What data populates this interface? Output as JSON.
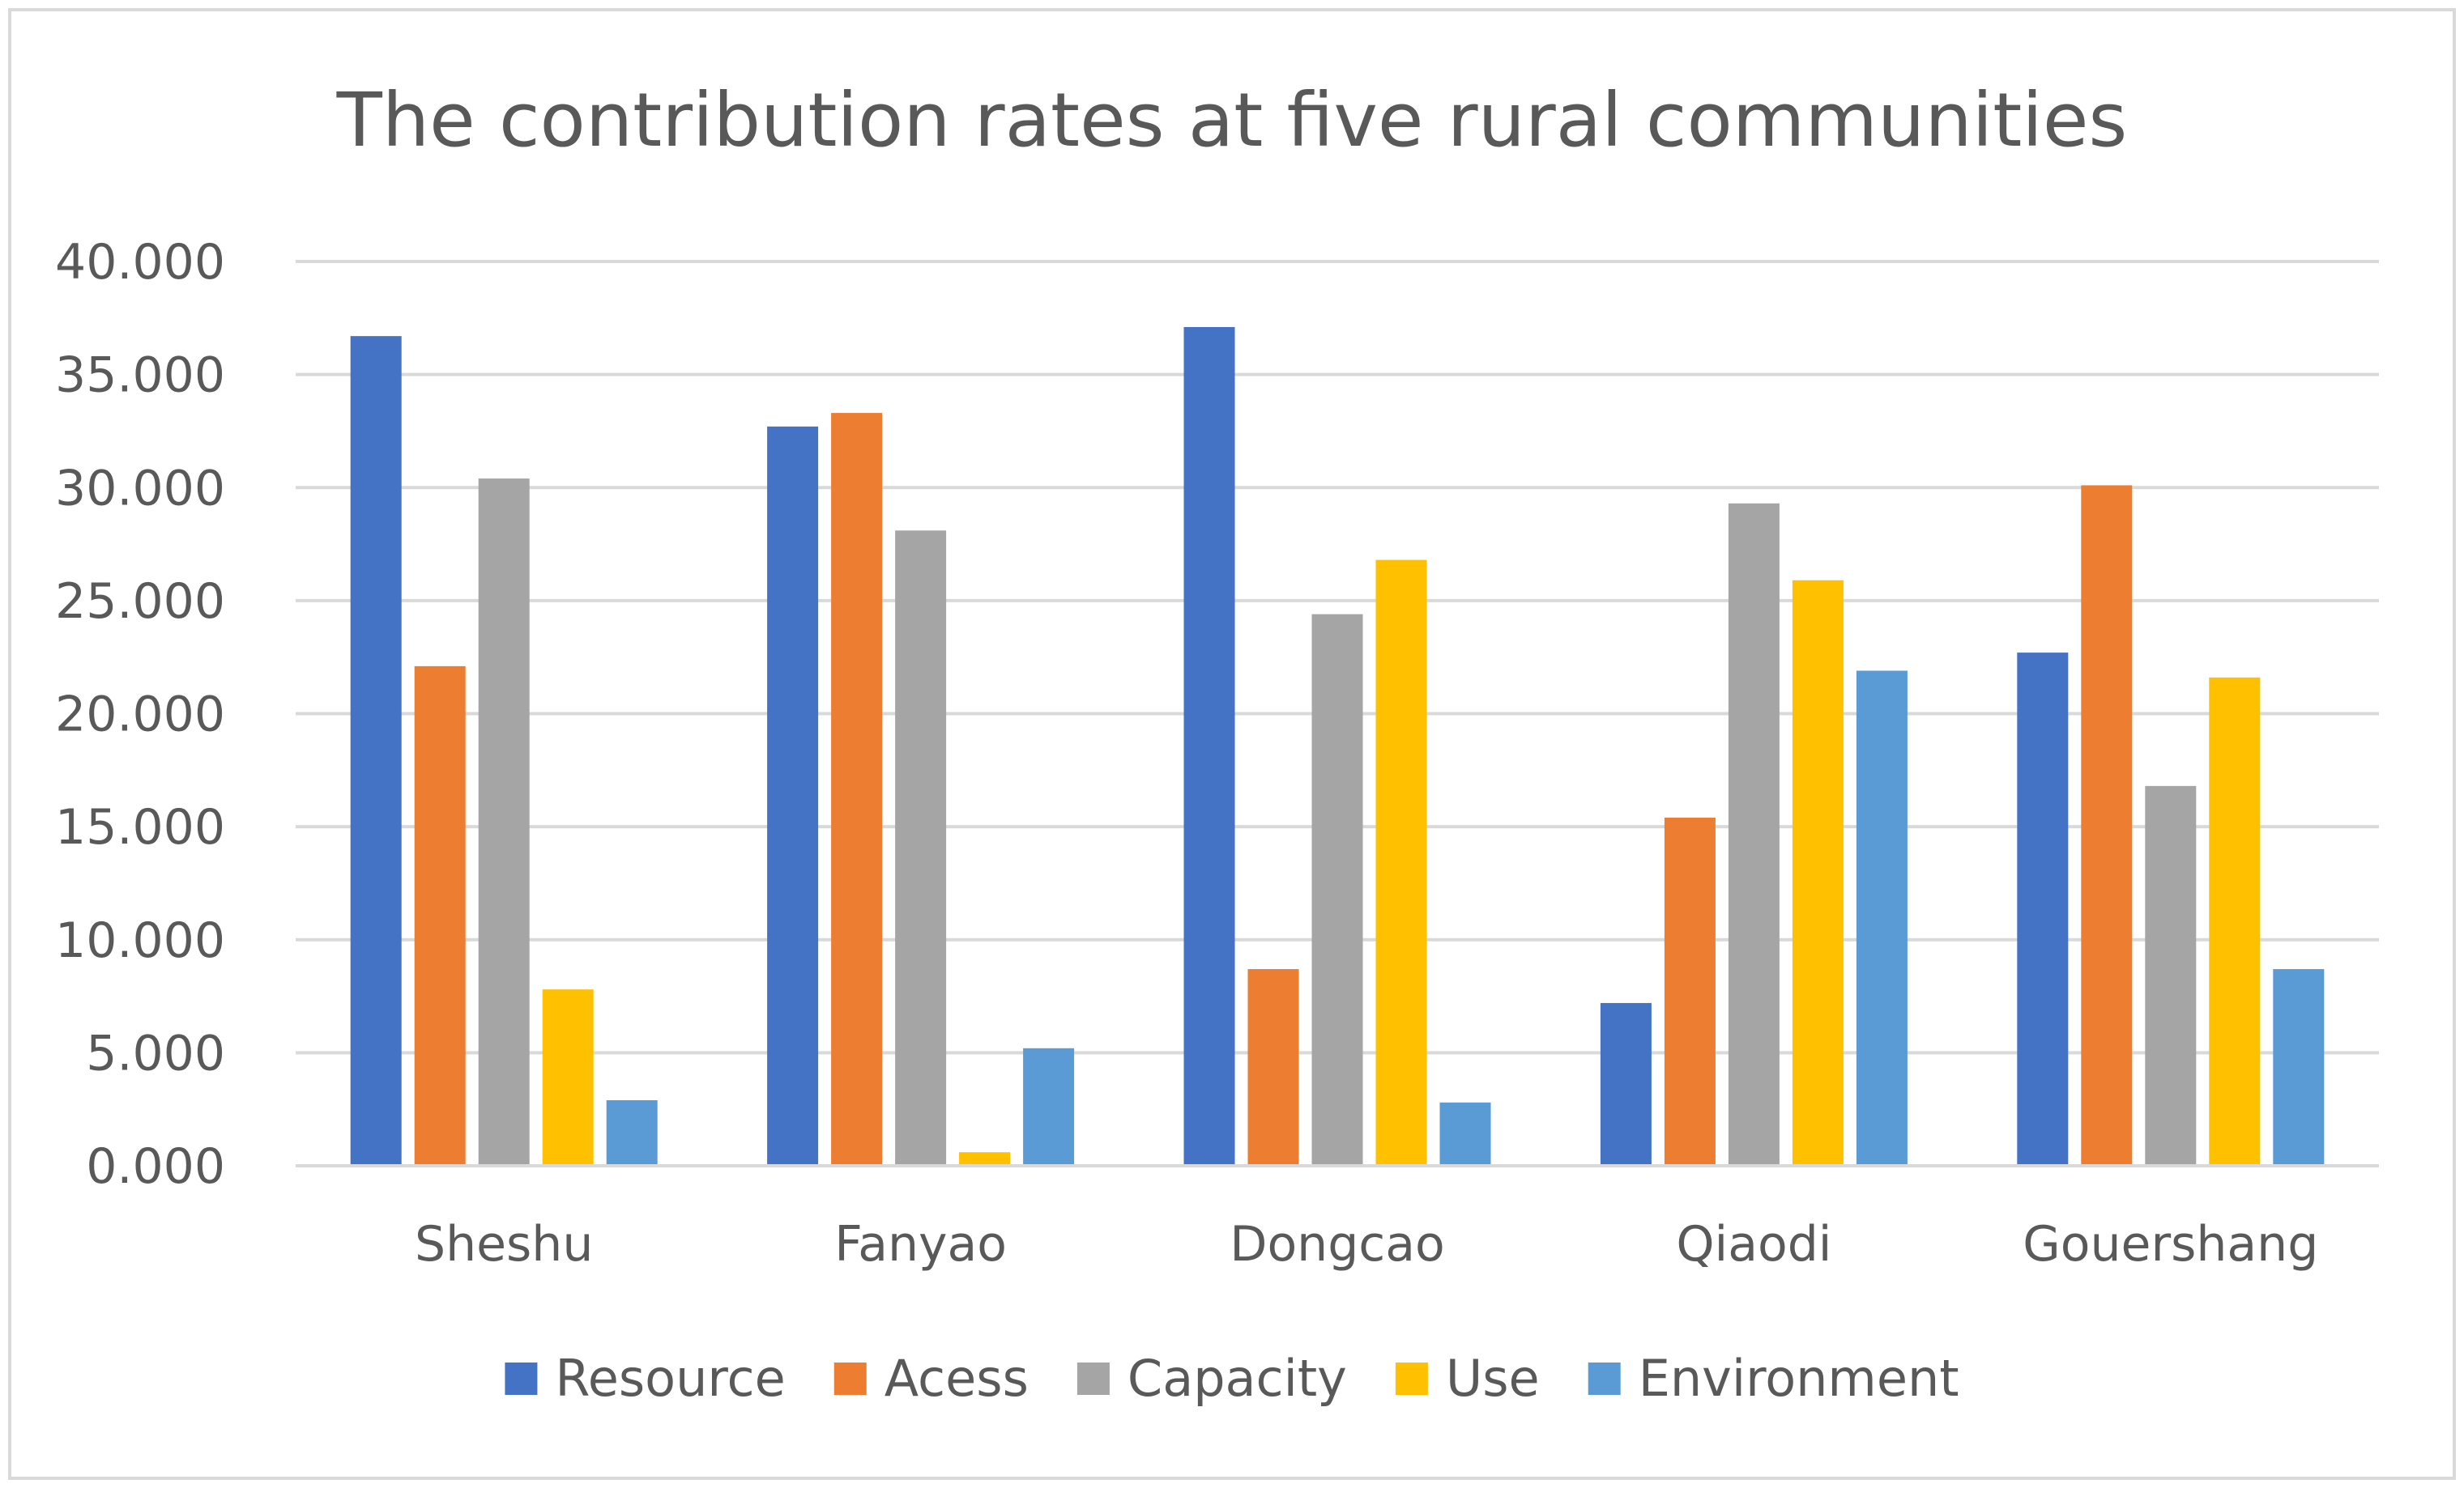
{
  "chart_data": {
    "type": "bar",
    "title": "The contribution rates at five rural communities",
    "xlabel": "",
    "ylabel": "",
    "ylim": [
      0,
      40
    ],
    "yticks": [
      0,
      5,
      10,
      15,
      20,
      25,
      30,
      35,
      40
    ],
    "ytick_labels": [
      "0.000",
      "5.000",
      "10.000",
      "15.000",
      "20.000",
      "25.000",
      "30.000",
      "35.000",
      "40.000"
    ],
    "grid": true,
    "legend_position": "bottom",
    "categories": [
      "Sheshu",
      "Fanyao",
      "Dongcao",
      "Qiaodi",
      "Gouershang"
    ],
    "series": [
      {
        "name": "Resource",
        "color": "#4472C4",
        "values": [
          36.7,
          32.7,
          37.1,
          7.2,
          22.7
        ]
      },
      {
        "name": "Acess",
        "color": "#ED7D31",
        "values": [
          22.1,
          33.3,
          8.7,
          15.4,
          30.1
        ]
      },
      {
        "name": "Capacity",
        "color": "#A5A5A5",
        "values": [
          30.4,
          28.1,
          24.4,
          29.3,
          16.8
        ]
      },
      {
        "name": "Use",
        "color": "#FFC000",
        "values": [
          7.8,
          0.6,
          26.8,
          25.9,
          21.6
        ]
      },
      {
        "name": "Environment",
        "color": "#5B9BD5",
        "values": [
          2.9,
          5.2,
          2.8,
          21.9,
          8.7
        ]
      }
    ]
  }
}
